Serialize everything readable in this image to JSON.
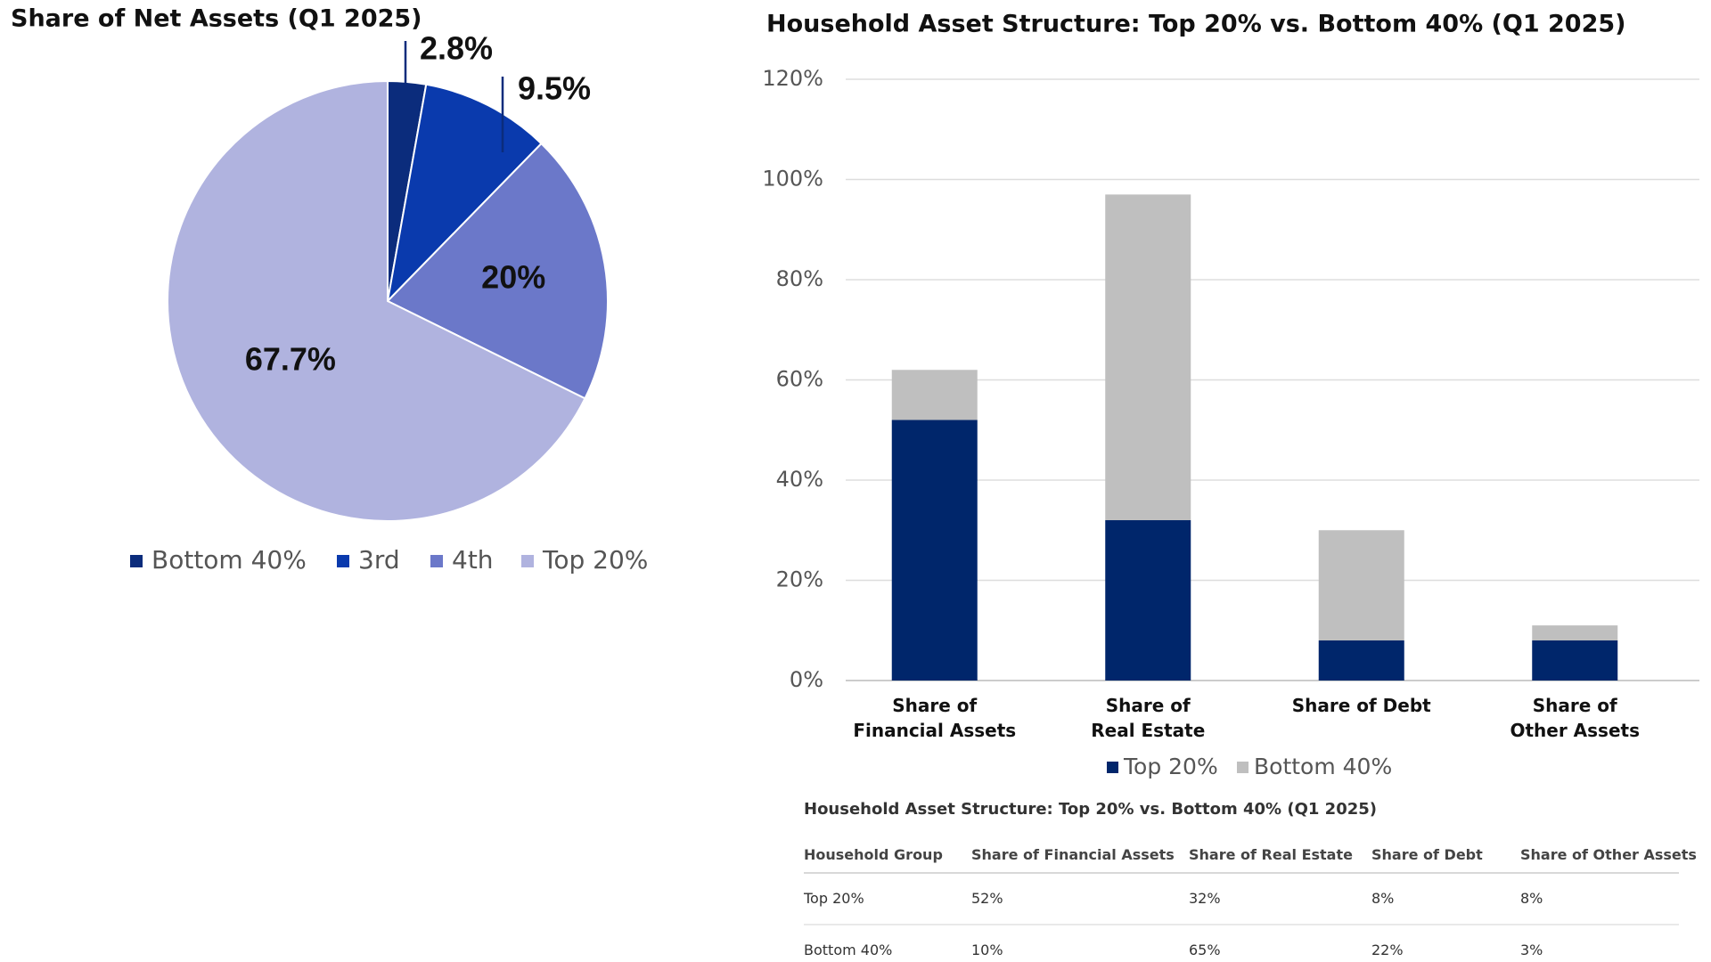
{
  "chart_data": [
    {
      "type": "pie",
      "title": "Share of Net Assets (Q1 2025)",
      "categories": [
        "Bottom 40%",
        "3rd",
        "4th",
        "Top 20%"
      ],
      "values": [
        2.8,
        9.5,
        20,
        67.7
      ],
      "value_labels": [
        "2.8%",
        "9.5%",
        "20%",
        "67.7%"
      ],
      "colors": [
        "#0b2c7c",
        "#0a3aad",
        "#6b78c9",
        "#b0b3df"
      ],
      "legend": "bottom"
    },
    {
      "type": "stacked_bar",
      "title": "Household Asset Structure: Top 20% vs. Bottom 40% (Q1 2025)",
      "categories": [
        "Share of\nFinancial Assets",
        "Share of\nReal Estate",
        "Share of Debt",
        "Share of\nOther Assets"
      ],
      "series": [
        {
          "name": "Top 20%",
          "color": "#00266b",
          "values": [
            52,
            32,
            8,
            8
          ]
        },
        {
          "name": "Bottom 40%",
          "color": "#bfbfbf",
          "values": [
            10,
            65,
            22,
            3
          ]
        }
      ],
      "ylim": [
        0,
        120
      ],
      "yticks": [
        {
          "value": 0,
          "label": "0%"
        },
        {
          "value": 20,
          "label": "20%"
        },
        {
          "value": 40,
          "label": "40%"
        },
        {
          "value": 60,
          "label": "60%"
        },
        {
          "value": 80,
          "label": "80%"
        },
        {
          "value": 100,
          "label": "100%"
        },
        {
          "value": 120,
          "label": "120%"
        }
      ],
      "grid": true,
      "legend": "bottom"
    }
  ],
  "table": {
    "title": "Household Asset Structure: Top 20% vs. Bottom 40% (Q1 2025)",
    "columns": [
      "Household Group",
      "Share of Financial Assets",
      "Share of Real Estate",
      "Share of Debt",
      "Share of Other Assets"
    ],
    "rows": [
      [
        "Top 20%",
        "52%",
        "32%",
        "8%",
        "8%"
      ],
      [
        "Bottom 40%",
        "10%",
        "65%",
        "22%",
        "3%"
      ]
    ]
  }
}
